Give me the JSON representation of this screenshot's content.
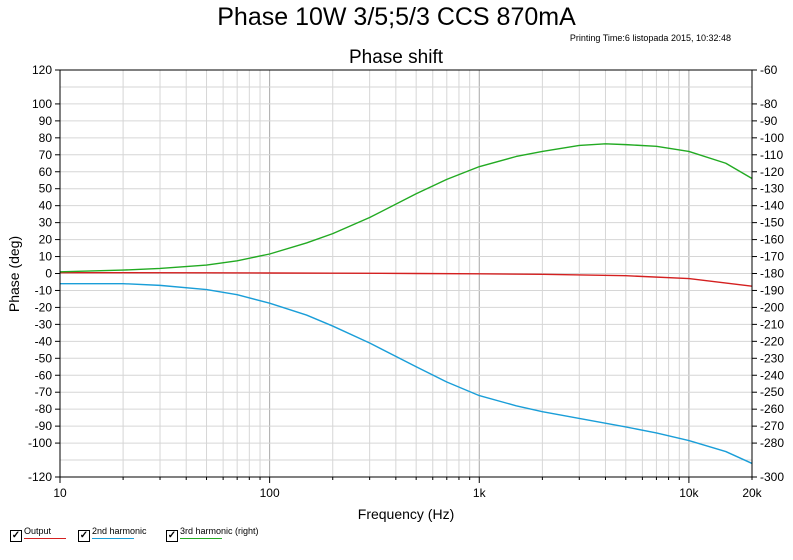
{
  "page_title": "Phase 10W 3/5;5/3 CCS 870mA",
  "printing_time": "Printing Time:6 listopada 2015, 10:32:48",
  "chart_data": {
    "type": "line",
    "title": "Phase shift",
    "xlabel": "Frequency (Hz)",
    "ylabel": "Phase (deg)",
    "x_scale": "log",
    "xlim": [
      10,
      20000
    ],
    "ylim": [
      -120,
      120
    ],
    "ylim_right": [
      -300,
      -60
    ],
    "grid": true,
    "legend_placement": "bottom-left",
    "x_tick_labels": [
      {
        "value": 10,
        "label": "10"
      },
      {
        "value": 100,
        "label": "100"
      },
      {
        "value": 1000,
        "label": "1k"
      },
      {
        "value": 10000,
        "label": "10k"
      },
      {
        "value": 20000,
        "label": "20k"
      }
    ],
    "y_ticks_left": [
      120,
      100,
      90,
      80,
      70,
      60,
      50,
      40,
      30,
      20,
      10,
      0,
      -10,
      -20,
      -30,
      -40,
      -50,
      -60,
      -70,
      -80,
      -90,
      -100,
      -120
    ],
    "y_ticks_right": [
      -60,
      -80,
      -90,
      -100,
      -110,
      -120,
      -130,
      -140,
      -150,
      -160,
      -170,
      -180,
      -190,
      -200,
      -210,
      -220,
      -230,
      -240,
      -250,
      -260,
      -270,
      -280,
      -300
    ],
    "series": [
      {
        "name": "Output",
        "axis": "left",
        "color": "#d42020",
        "x": [
          10,
          20,
          50,
          100,
          200,
          500,
          1000,
          2000,
          5000,
          10000,
          20000
        ],
        "y": [
          0.5,
          0.5,
          0.4,
          0.3,
          0.2,
          0,
          -0.2,
          -0.5,
          -1.3,
          -3,
          -7.5
        ]
      },
      {
        "name": "2nd harmonic",
        "axis": "left",
        "color": "#1a9ed8",
        "x": [
          10,
          20,
          30,
          50,
          70,
          100,
          150,
          200,
          300,
          500,
          700,
          1000,
          1500,
          2000,
          3000,
          5000,
          7000,
          10000,
          15000,
          20000
        ],
        "y": [
          -6,
          -6,
          -7,
          -9.5,
          -12.5,
          -17.5,
          -24.5,
          -31,
          -41,
          -55,
          -64,
          -72,
          -78,
          -81.5,
          -85.5,
          -90.5,
          -94,
          -98.5,
          -105,
          -112
        ]
      },
      {
        "name": "3rd harmonic (right)",
        "axis": "right",
        "color": "#22aa22",
        "x": [
          10,
          20,
          30,
          50,
          70,
          100,
          150,
          200,
          300,
          500,
          700,
          1000,
          1500,
          2000,
          3000,
          4000,
          5000,
          7000,
          10000,
          15000,
          20000
        ],
        "y": [
          -179,
          -178,
          -177,
          -175,
          -172.5,
          -168.5,
          -162,
          -156.5,
          -147,
          -133,
          -124.5,
          -117,
          -111,
          -108,
          -104.5,
          -103.5,
          -104,
          -105,
          -108,
          -115,
          -124
        ]
      }
    ]
  }
}
